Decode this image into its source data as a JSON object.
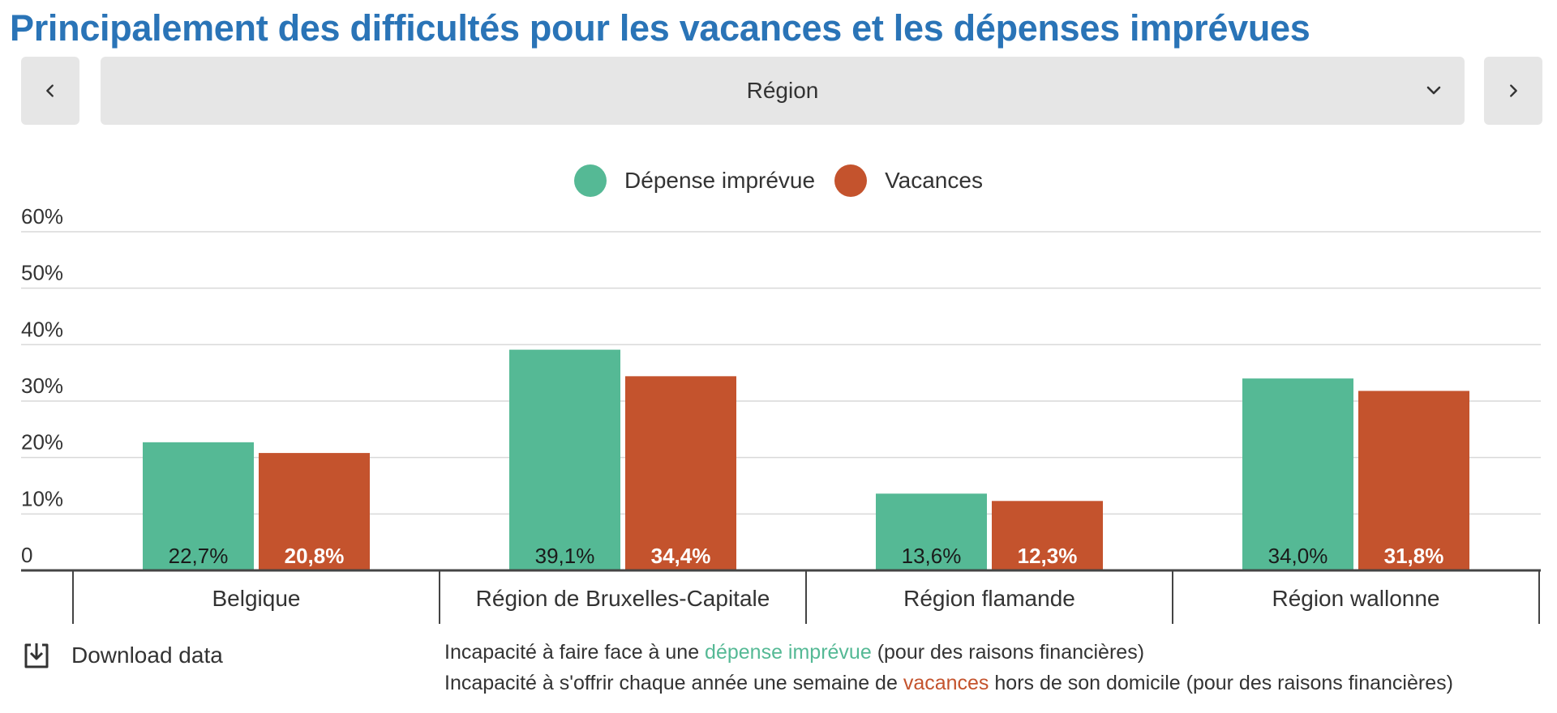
{
  "title": "Principalement des difficultés pour les vacances et les dépenses imprévues",
  "colors": {
    "title": "#2a74b7",
    "green": "#55b995",
    "orange": "#c4532d"
  },
  "nav": {
    "prev_icon": "chevron-left-icon",
    "next_icon": "chevron-right-icon"
  },
  "selector": {
    "value": "Région",
    "icon": "chevron-down-icon"
  },
  "legend": [
    {
      "label": "Dépense imprévue",
      "color": "#55b995"
    },
    {
      "label": "Vacances",
      "color": "#c4532d"
    }
  ],
  "chart_data": {
    "type": "bar",
    "categories": [
      "Belgique",
      "Région de Bruxelles-Capitale",
      "Région flamande",
      "Région wallonne"
    ],
    "series": [
      {
        "name": "Dépense imprévue",
        "color": "#55b995",
        "values": [
          22.7,
          39.1,
          13.6,
          34.0
        ],
        "labels": [
          "22,7%",
          "39,1%",
          "13,6%",
          "34,0%"
        ],
        "label_color": "#1a1a1a"
      },
      {
        "name": "Vacances",
        "color": "#c4532d",
        "values": [
          20.8,
          34.4,
          12.3,
          31.8
        ],
        "labels": [
          "20,8%",
          "34,4%",
          "12,3%",
          "31,8%"
        ],
        "label_color": "#ffffff"
      }
    ],
    "y_ticks": [
      {
        "value": 0,
        "label": "0"
      },
      {
        "value": 10,
        "label": "10%"
      },
      {
        "value": 20,
        "label": "20%"
      },
      {
        "value": 30,
        "label": "30%"
      },
      {
        "value": 40,
        "label": "40%"
      },
      {
        "value": 50,
        "label": "50%"
      },
      {
        "value": 60,
        "label": "60%"
      }
    ],
    "ylim": [
      0,
      60
    ],
    "grid": true,
    "legend_position": "top-center"
  },
  "download": {
    "label": "Download data",
    "icon": "download-icon"
  },
  "notes": {
    "line1": {
      "pre": "Incapacité à faire face à une ",
      "highlight": "dépense imprévue",
      "post": " (pour des raisons financières)"
    },
    "line2": {
      "pre": "Incapacité à s'offrir chaque année une semaine de ",
      "highlight": "vacances",
      "post": " hors de son domicile (pour des raisons financières)"
    }
  }
}
